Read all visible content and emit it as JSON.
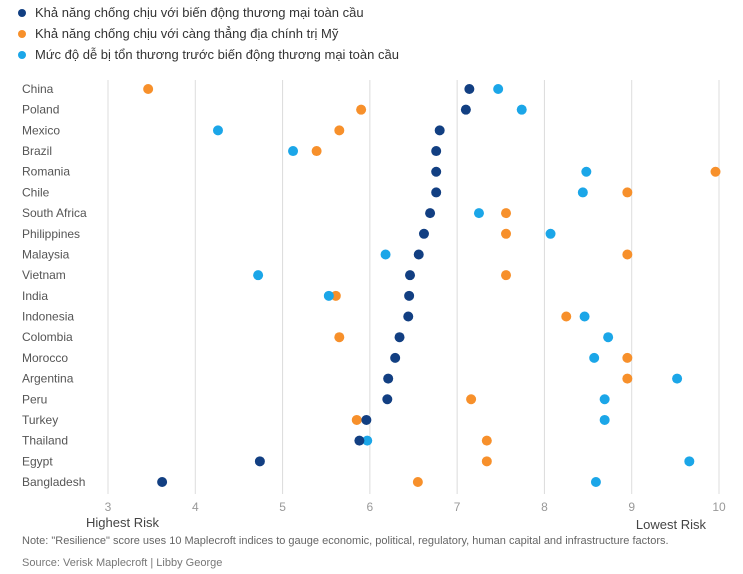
{
  "colors": {
    "resilience_trade": "#123f82",
    "resilience_us_tension": "#f7902b",
    "vulnerability": "#1ba6e8"
  },
  "chart_data": {
    "type": "scatter",
    "orientation": "horizontal dot plot",
    "xlim": [
      3,
      10
    ],
    "xticks": [
      "3",
      "4",
      "5",
      "6",
      "7",
      "8",
      "9",
      "10"
    ],
    "grid": "vertical",
    "legend_position": "top-left",
    "x_low_label": "Highest Risk",
    "x_high_label": "Lowest Risk",
    "categories": [
      "China",
      "Poland",
      "Mexico",
      "Brazil",
      "Romania",
      "Chile",
      "South Africa",
      "Philippines",
      "Malaysia",
      "Vietnam",
      "India",
      "Indonesia",
      "Colombia",
      "Morocco",
      "Argentina",
      "Peru",
      "Turkey",
      "Thailand",
      "Egypt",
      "Bangladesh"
    ],
    "series": [
      {
        "name": "Khả năng chống chịu với biến động thương mại toàn cầu",
        "color": "#123f82",
        "values": [
          7.14,
          7.1,
          6.8,
          6.76,
          6.76,
          6.76,
          6.69,
          6.62,
          6.56,
          6.46,
          6.45,
          6.44,
          6.34,
          6.29,
          6.21,
          6.2,
          5.96,
          5.88,
          4.74,
          3.62
        ]
      },
      {
        "name": "Khả năng chống chịu với càng thẳng địa chính trị Mỹ",
        "color": "#f7902b",
        "values": [
          3.46,
          5.9,
          5.65,
          5.39,
          9.96,
          8.95,
          7.56,
          7.56,
          8.95,
          7.56,
          5.61,
          8.25,
          5.65,
          8.95,
          8.95,
          7.16,
          5.85,
          7.34,
          7.34,
          6.55
        ]
      },
      {
        "name": "Mức độ dễ bị tổn thương trước biến động thương mại toàn cầu",
        "color": "#1ba6e8",
        "values": [
          7.47,
          7.74,
          4.26,
          5.12,
          8.48,
          8.44,
          7.25,
          8.07,
          6.18,
          4.72,
          5.53,
          8.46,
          8.73,
          8.57,
          9.52,
          8.69,
          8.69,
          5.97,
          9.66,
          8.59
        ]
      }
    ]
  },
  "note": "Note: \"Resilience\" score uses 10 Maplecroft indices to gauge economic, political, regulatory, human capital and infrastructure factors.",
  "source": "Source: Verisk Maplecroft | Libby George"
}
